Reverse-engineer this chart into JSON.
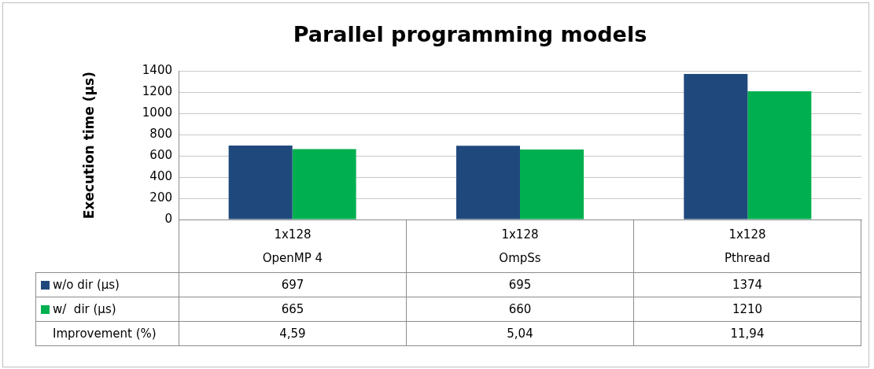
{
  "chart_data": {
    "type": "bar",
    "title": "Parallel programming models",
    "ylabel": "Execution time (µs)",
    "categories": [
      "1x128\nOpenMP 4",
      "1x128\nOmpSs",
      "1x128\nPthread"
    ],
    "series": [
      {
        "name": "w/o dir (µs)",
        "color": "#1f497d",
        "values": [
          697,
          695,
          1374
        ]
      },
      {
        "name": "w/  dir (µs)",
        "color": "#00b050",
        "values": [
          665,
          660,
          1210
        ]
      }
    ],
    "ylim": [
      0,
      1400
    ],
    "yticks": [
      0,
      200,
      400,
      600,
      800,
      1000,
      1200,
      1400
    ],
    "grid": "y",
    "legend": "bottom",
    "data_labels": true,
    "annotations": [
      "Improvement (%)",
      "4,59",
      "5,04",
      "11,94"
    ]
  }
}
